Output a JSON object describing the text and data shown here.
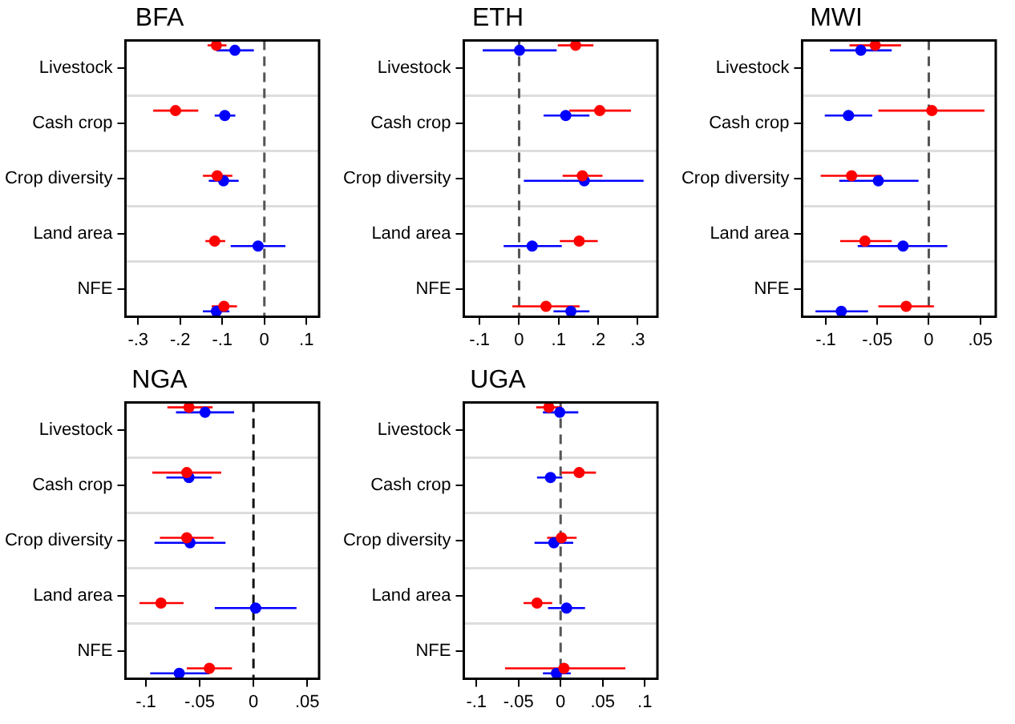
{
  "chart_data": [
    {
      "type": "scatter",
      "title": "BFA",
      "orientation": "horizontal",
      "categories": [
        "Livestock",
        "Cash crop",
        "Crop diversity",
        "Land area",
        "NFE"
      ],
      "marker": "circle",
      "grid": "y",
      "xlim": [
        -0.33,
        0.13
      ],
      "xticks": [
        {
          "value": -0.3,
          "label": "-.3"
        },
        {
          "value": -0.2,
          "label": "-.2"
        },
        {
          "value": -0.1,
          "label": "-.1"
        },
        {
          "value": 0,
          "label": "0"
        },
        {
          "value": 0.1,
          "label": ".1"
        }
      ],
      "ref_lines": [
        {
          "axis": "x",
          "value": 0,
          "line_style": "dashed",
          "color": "#555555"
        }
      ],
      "series": [
        {
          "color": "#ff0000",
          "values": [
            -0.114,
            -0.211,
            -0.112,
            -0.118,
            -0.096
          ],
          "errors": [
            [
              -0.135,
              -0.09
            ],
            [
              -0.264,
              -0.157
            ],
            [
              -0.146,
              -0.076
            ],
            [
              -0.14,
              -0.093
            ],
            [
              -0.125,
              -0.065
            ]
          ]
        },
        {
          "color": "#0000ff",
          "values": [
            -0.07,
            -0.094,
            -0.097,
            -0.015,
            -0.114
          ],
          "errors": [
            [
              -0.114,
              -0.025
            ],
            [
              -0.118,
              -0.069
            ],
            [
              -0.132,
              -0.061
            ],
            [
              -0.08,
              0.05
            ],
            [
              -0.146,
              -0.083
            ]
          ]
        }
      ]
    },
    {
      "type": "scatter",
      "title": "ETH",
      "orientation": "horizontal",
      "categories": [
        "Livestock",
        "Cash crop",
        "Crop diversity",
        "Land area",
        "NFE"
      ],
      "marker": "circle",
      "grid": "y",
      "xlim": [
        -0.14,
        0.35
      ],
      "xticks": [
        {
          "value": -0.1,
          "label": "-.1"
        },
        {
          "value": 0,
          "label": "0"
        },
        {
          "value": 0.1,
          "label": ".1"
        },
        {
          "value": 0.2,
          "label": ".2"
        },
        {
          "value": 0.3,
          "label": ".3"
        }
      ],
      "ref_lines": [
        {
          "axis": "x",
          "value": 0,
          "line_style": "dashed",
          "color": "#555555"
        }
      ],
      "series": [
        {
          "color": "#ff0000",
          "values": [
            0.143,
            0.204,
            0.16,
            0.152,
            0.068
          ],
          "errors": [
            [
              0.098,
              0.188
            ],
            [
              0.127,
              0.283
            ],
            [
              0.11,
              0.211
            ],
            [
              0.103,
              0.199
            ],
            [
              -0.017,
              0.153
            ]
          ]
        },
        {
          "color": "#0000ff",
          "values": [
            0.001,
            0.118,
            0.165,
            0.033,
            0.131
          ],
          "errors": [
            [
              -0.092,
              0.095
            ],
            [
              0.062,
              0.178
            ],
            [
              0.012,
              0.315
            ],
            [
              -0.039,
              0.108
            ],
            [
              0.087,
              0.178
            ]
          ]
        }
      ]
    },
    {
      "type": "scatter",
      "title": "MWI",
      "orientation": "horizontal",
      "categories": [
        "Livestock",
        "Cash crop",
        "Crop diversity",
        "Land area",
        "NFE"
      ],
      "marker": "circle",
      "grid": "y",
      "xlim": [
        -0.123,
        0.065
      ],
      "xticks": [
        {
          "value": -0.1,
          "label": "-.1"
        },
        {
          "value": -0.05,
          "label": "-.05"
        },
        {
          "value": 0,
          "label": "0"
        },
        {
          "value": 0.05,
          "label": ".05"
        }
      ],
      "ref_lines": [
        {
          "axis": "x",
          "value": 0,
          "line_style": "dashed",
          "color": "#555555"
        }
      ],
      "series": [
        {
          "color": "#ff0000",
          "values": [
            -0.052,
            0.003,
            -0.075,
            -0.062,
            -0.022
          ],
          "errors": [
            [
              -0.077,
              -0.027
            ],
            [
              -0.049,
              0.054
            ],
            [
              -0.105,
              -0.046
            ],
            [
              -0.086,
              -0.036
            ],
            [
              -0.049,
              0.005
            ]
          ]
        },
        {
          "color": "#0000ff",
          "values": [
            -0.066,
            -0.078,
            -0.049,
            -0.025,
            -0.085
          ],
          "errors": [
            [
              -0.096,
              -0.036
            ],
            [
              -0.101,
              -0.055
            ],
            [
              -0.087,
              -0.01
            ],
            [
              -0.069,
              0.018
            ],
            [
              -0.11,
              -0.059
            ]
          ]
        }
      ]
    },
    {
      "type": "scatter",
      "title": "NGA",
      "orientation": "horizontal",
      "categories": [
        "Livestock",
        "Cash crop",
        "Crop diversity",
        "Land area",
        "NFE"
      ],
      "marker": "circle",
      "grid": "y",
      "xlim": [
        -0.119,
        0.061
      ],
      "xticks": [
        {
          "value": -0.1,
          "label": "-.1"
        },
        {
          "value": -0.05,
          "label": "-.05"
        },
        {
          "value": 0,
          "label": "0"
        },
        {
          "value": 0.05,
          "label": ".05"
        }
      ],
      "ref_lines": [
        {
          "axis": "x",
          "value": 0,
          "line_style": "dashed",
          "color": "#111111"
        }
      ],
      "series": [
        {
          "color": "#ff0000",
          "values": [
            -0.06,
            -0.062,
            -0.062,
            -0.086,
            -0.041
          ],
          "errors": [
            [
              -0.08,
              -0.038
            ],
            [
              -0.094,
              -0.03
            ],
            [
              -0.087,
              -0.037
            ],
            [
              -0.106,
              -0.065
            ],
            [
              -0.062,
              -0.02
            ]
          ]
        },
        {
          "color": "#0000ff",
          "values": [
            -0.045,
            -0.06,
            -0.059,
            0.002,
            -0.069
          ],
          "errors": [
            [
              -0.072,
              -0.018
            ],
            [
              -0.081,
              -0.039
            ],
            [
              -0.092,
              -0.026
            ],
            [
              -0.036,
              0.04
            ],
            [
              -0.096,
              -0.041
            ]
          ]
        }
      ]
    },
    {
      "type": "scatter",
      "title": "UGA",
      "orientation": "horizontal",
      "categories": [
        "Livestock",
        "Cash crop",
        "Crop diversity",
        "Land area",
        "NFE"
      ],
      "marker": "circle",
      "grid": "y",
      "xlim": [
        -0.115,
        0.115
      ],
      "xticks": [
        {
          "value": -0.1,
          "label": "-.1"
        },
        {
          "value": -0.05,
          "label": "-.05"
        },
        {
          "value": 0,
          "label": "0"
        },
        {
          "value": 0.05,
          "label": ".05"
        },
        {
          "value": 0.1,
          "label": ".1"
        }
      ],
      "ref_lines": [
        {
          "axis": "x",
          "value": 0,
          "line_style": "dashed",
          "color": "#555555"
        }
      ],
      "series": [
        {
          "color": "#ff0000",
          "values": [
            -0.014,
            0.022,
            0.001,
            -0.028,
            0.004
          ],
          "errors": [
            [
              -0.029,
              0.001
            ],
            [
              0.001,
              0.042
            ],
            [
              -0.016,
              0.019
            ],
            [
              -0.044,
              -0.01
            ],
            [
              -0.066,
              0.077
            ]
          ]
        },
        {
          "color": "#0000ff",
          "values": [
            -0.001,
            -0.012,
            -0.008,
            0.007,
            -0.005
          ],
          "errors": [
            [
              -0.021,
              0.021
            ],
            [
              -0.028,
              0.002
            ],
            [
              -0.031,
              0.015
            ],
            [
              -0.015,
              0.029
            ],
            [
              -0.021,
              0.012
            ]
          ]
        }
      ]
    }
  ]
}
